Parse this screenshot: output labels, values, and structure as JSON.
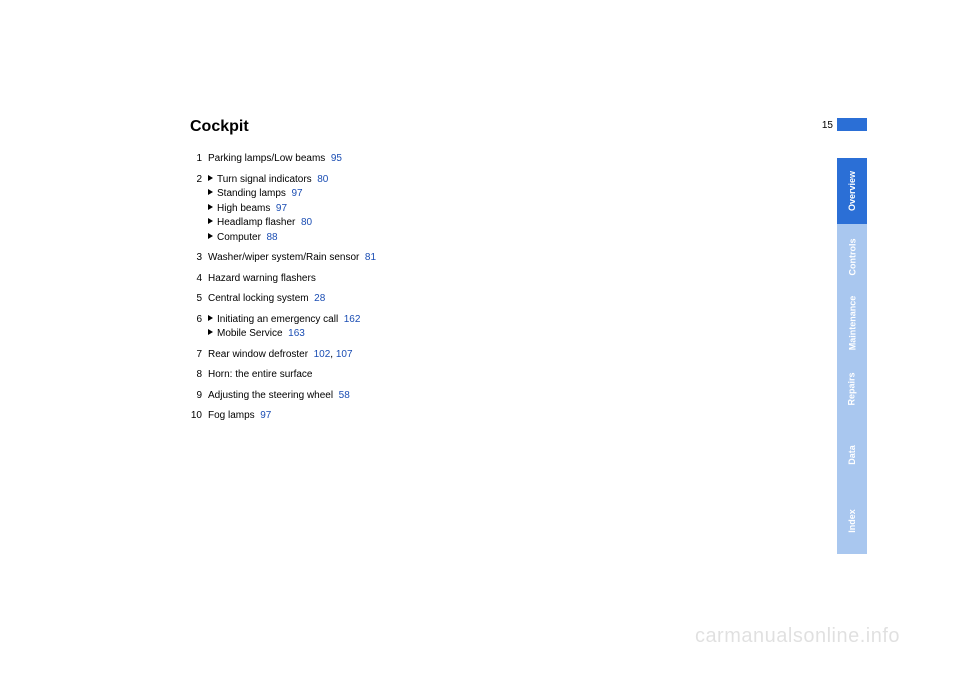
{
  "page_number": "15",
  "heading": "Cockpit",
  "colors": {
    "link": "#1a4db3",
    "tab_active": "#2b6fd6",
    "tab_inactive": "#a9c7ef",
    "tab_text": "#ffffff",
    "text": "#000000",
    "background": "#ffffff",
    "watermark": "rgba(0,0,0,0.12)"
  },
  "typography": {
    "heading_size_pt": 16,
    "body_size_pt": 10,
    "tab_size_pt": 9,
    "font_family": "Arial"
  },
  "entries": [
    {
      "n": "1",
      "lines": [
        {
          "text": "Parking lamps/Low beams",
          "ref": "95"
        }
      ]
    },
    {
      "n": "2",
      "lines": [
        {
          "tri": true,
          "text": "Turn signal indicators",
          "ref": "80"
        },
        {
          "tri": true,
          "text": "Standing lamps",
          "ref": "97"
        },
        {
          "tri": true,
          "text": "High beams",
          "ref": "97"
        },
        {
          "tri": true,
          "text": "Headlamp flasher",
          "ref": "80"
        },
        {
          "tri": true,
          "text": "Computer",
          "ref": "88"
        }
      ]
    },
    {
      "n": "3",
      "lines": [
        {
          "text": "Washer/wiper system/Rain sensor",
          "ref": "81"
        }
      ]
    },
    {
      "n": "4",
      "lines": [
        {
          "text": "Hazard warning flashers"
        }
      ]
    },
    {
      "n": "5",
      "lines": [
        {
          "text": "Central locking system",
          "ref": "28"
        }
      ]
    },
    {
      "n": "6",
      "lines": [
        {
          "tri": true,
          "text": "Initiating an emergency call",
          "ref": "162"
        },
        {
          "tri": true,
          "text": "Mobile Service",
          "ref": "163"
        }
      ]
    },
    {
      "n": "7",
      "lines": [
        {
          "text": "Rear window defroster",
          "ref": "102",
          "ref2": "107"
        }
      ]
    },
    {
      "n": "8",
      "lines": [
        {
          "text": "Horn: the entire surface"
        }
      ]
    },
    {
      "n": "9",
      "lines": [
        {
          "text": "Adjusting the steering wheel",
          "ref": "58"
        }
      ]
    },
    {
      "n": "10",
      "lines": [
        {
          "text": "Fog lamps",
          "ref": "97"
        }
      ]
    }
  ],
  "tabs": [
    {
      "label": "Overview",
      "active": true
    },
    {
      "label": "Controls",
      "active": false
    },
    {
      "label": "Maintenance",
      "active": false
    },
    {
      "label": "Repairs",
      "active": false
    },
    {
      "label": "Data",
      "active": false
    },
    {
      "label": "Index",
      "active": false
    }
  ],
  "watermark": "carmanualsonline.info"
}
